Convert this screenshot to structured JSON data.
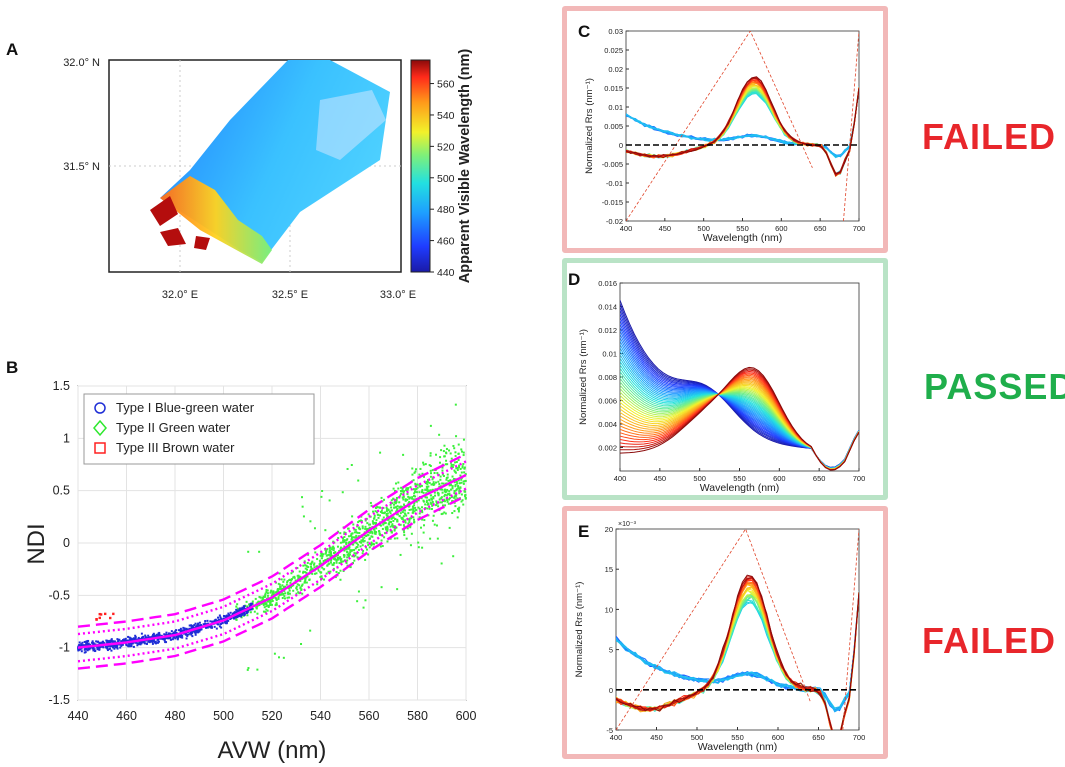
{
  "colors": {
    "failed": "#e8262b",
    "passed": "#1fae4b",
    "failed_frame": "#f2b8b8",
    "passed_frame": "#b9e3c6",
    "magenta": "#ff00ff",
    "type1": "#1f2fd6",
    "type2": "#2ee82e",
    "type3": "#ff2020"
  },
  "panels": {
    "a": "A",
    "b": "B",
    "c": "C",
    "d": "D",
    "e": "E"
  },
  "verdicts": {
    "c": "FAILED",
    "d": "PASSED",
    "e": "FAILED"
  },
  "map_a": {
    "lat_ticks": [
      "32.0° N",
      "31.5° N"
    ],
    "lon_ticks": [
      "32.0° E",
      "32.5° E",
      "33.0° E"
    ],
    "colorbar": {
      "label": "Apparent Visible Wavelength (nm)",
      "ticks": [
        440,
        460,
        480,
        500,
        520,
        540,
        560
      ],
      "range": [
        440,
        575
      ]
    }
  },
  "chart_data": [
    {
      "id": "B",
      "type": "scatter",
      "xlabel": "AVW (nm)",
      "ylabel": "NDI",
      "xlim": [
        440,
        600
      ],
      "ylim": [
        -1.5,
        1.5
      ],
      "xticks": [
        440,
        460,
        480,
        500,
        520,
        540,
        560,
        580,
        600
      ],
      "yticks": [
        -1.5,
        -1,
        -0.5,
        0,
        0.5,
        1,
        1.5
      ],
      "grid": true,
      "legend_position": "top-left",
      "series": [
        {
          "name": "Type I  Blue-green water",
          "marker": "circle",
          "x_range": [
            440,
            512
          ],
          "center_line": "fit"
        },
        {
          "name": "Type II Green water",
          "marker": "diamond",
          "x_range": [
            505,
            600
          ],
          "center_line": "fit"
        },
        {
          "name": "Type III Brown water",
          "marker": "square",
          "x_range": [
            447,
            455
          ],
          "center": -0.7
        }
      ],
      "fit_curve": {
        "x": [
          440,
          460,
          480,
          500,
          520,
          540,
          560,
          580,
          600
        ],
        "y": [
          -1.0,
          -0.95,
          -0.88,
          -0.74,
          -0.52,
          -0.22,
          0.12,
          0.42,
          0.65
        ]
      },
      "bounds_inner_offset": 0.13,
      "bounds_outer_offset": 0.2
    },
    {
      "id": "C",
      "type": "line",
      "xlabel": "Wavelength (nm)",
      "ylabel": "Normalized Rrs (nm⁻¹)",
      "xlim": [
        400,
        700
      ],
      "ylim": [
        -0.02,
        0.03
      ],
      "xticks": [
        400,
        450,
        500,
        550,
        600,
        650,
        700
      ],
      "yticks": [
        -0.02,
        -0.015,
        -0.01,
        -0.005,
        0,
        0.005,
        0.01,
        0.015,
        0.02,
        0.025,
        0.03
      ],
      "ytick_labels": [
        "-0.02",
        "-0.015",
        "-0.01",
        "-0.005",
        "0",
        "0.005",
        "0.01",
        "0.015",
        "0.02",
        "0.025",
        "0.03"
      ],
      "zero_line": true,
      "note": "many normalized spectra colored by AVW"
    },
    {
      "id": "D",
      "type": "line",
      "xlabel": "Wavelength (nm)",
      "ylabel": "Normalized Rrs (nm⁻¹)",
      "xlim": [
        400,
        700
      ],
      "ylim": [
        0,
        0.016
      ],
      "xticks": [
        400,
        450,
        500,
        550,
        600,
        650,
        700
      ],
      "yticks": [
        0.002,
        0.004,
        0.006,
        0.008,
        0.01,
        0.012,
        0.014,
        0.016
      ],
      "ytick_labels": [
        "0.002",
        "0.004",
        "0.006",
        "0.008",
        "0.01",
        "0.012",
        "0.014",
        "0.016"
      ],
      "zero_line": false,
      "note": "many normalized spectra colored by AVW"
    },
    {
      "id": "E",
      "type": "line",
      "xlabel": "Wavelength (nm)",
      "ylabel": "Normalized Rrs (nm⁻¹)",
      "xlim": [
        400,
        700
      ],
      "ylim": [
        -5,
        20
      ],
      "exponent_label": "×10⁻³",
      "xticks": [
        400,
        450,
        500,
        550,
        600,
        650,
        700
      ],
      "yticks": [
        -5,
        0,
        5,
        10,
        15,
        20
      ],
      "ytick_labels": [
        "-5",
        "0",
        "5",
        "10",
        "15",
        "20"
      ],
      "zero_line": true,
      "note": "many normalized spectra colored by AVW"
    }
  ]
}
